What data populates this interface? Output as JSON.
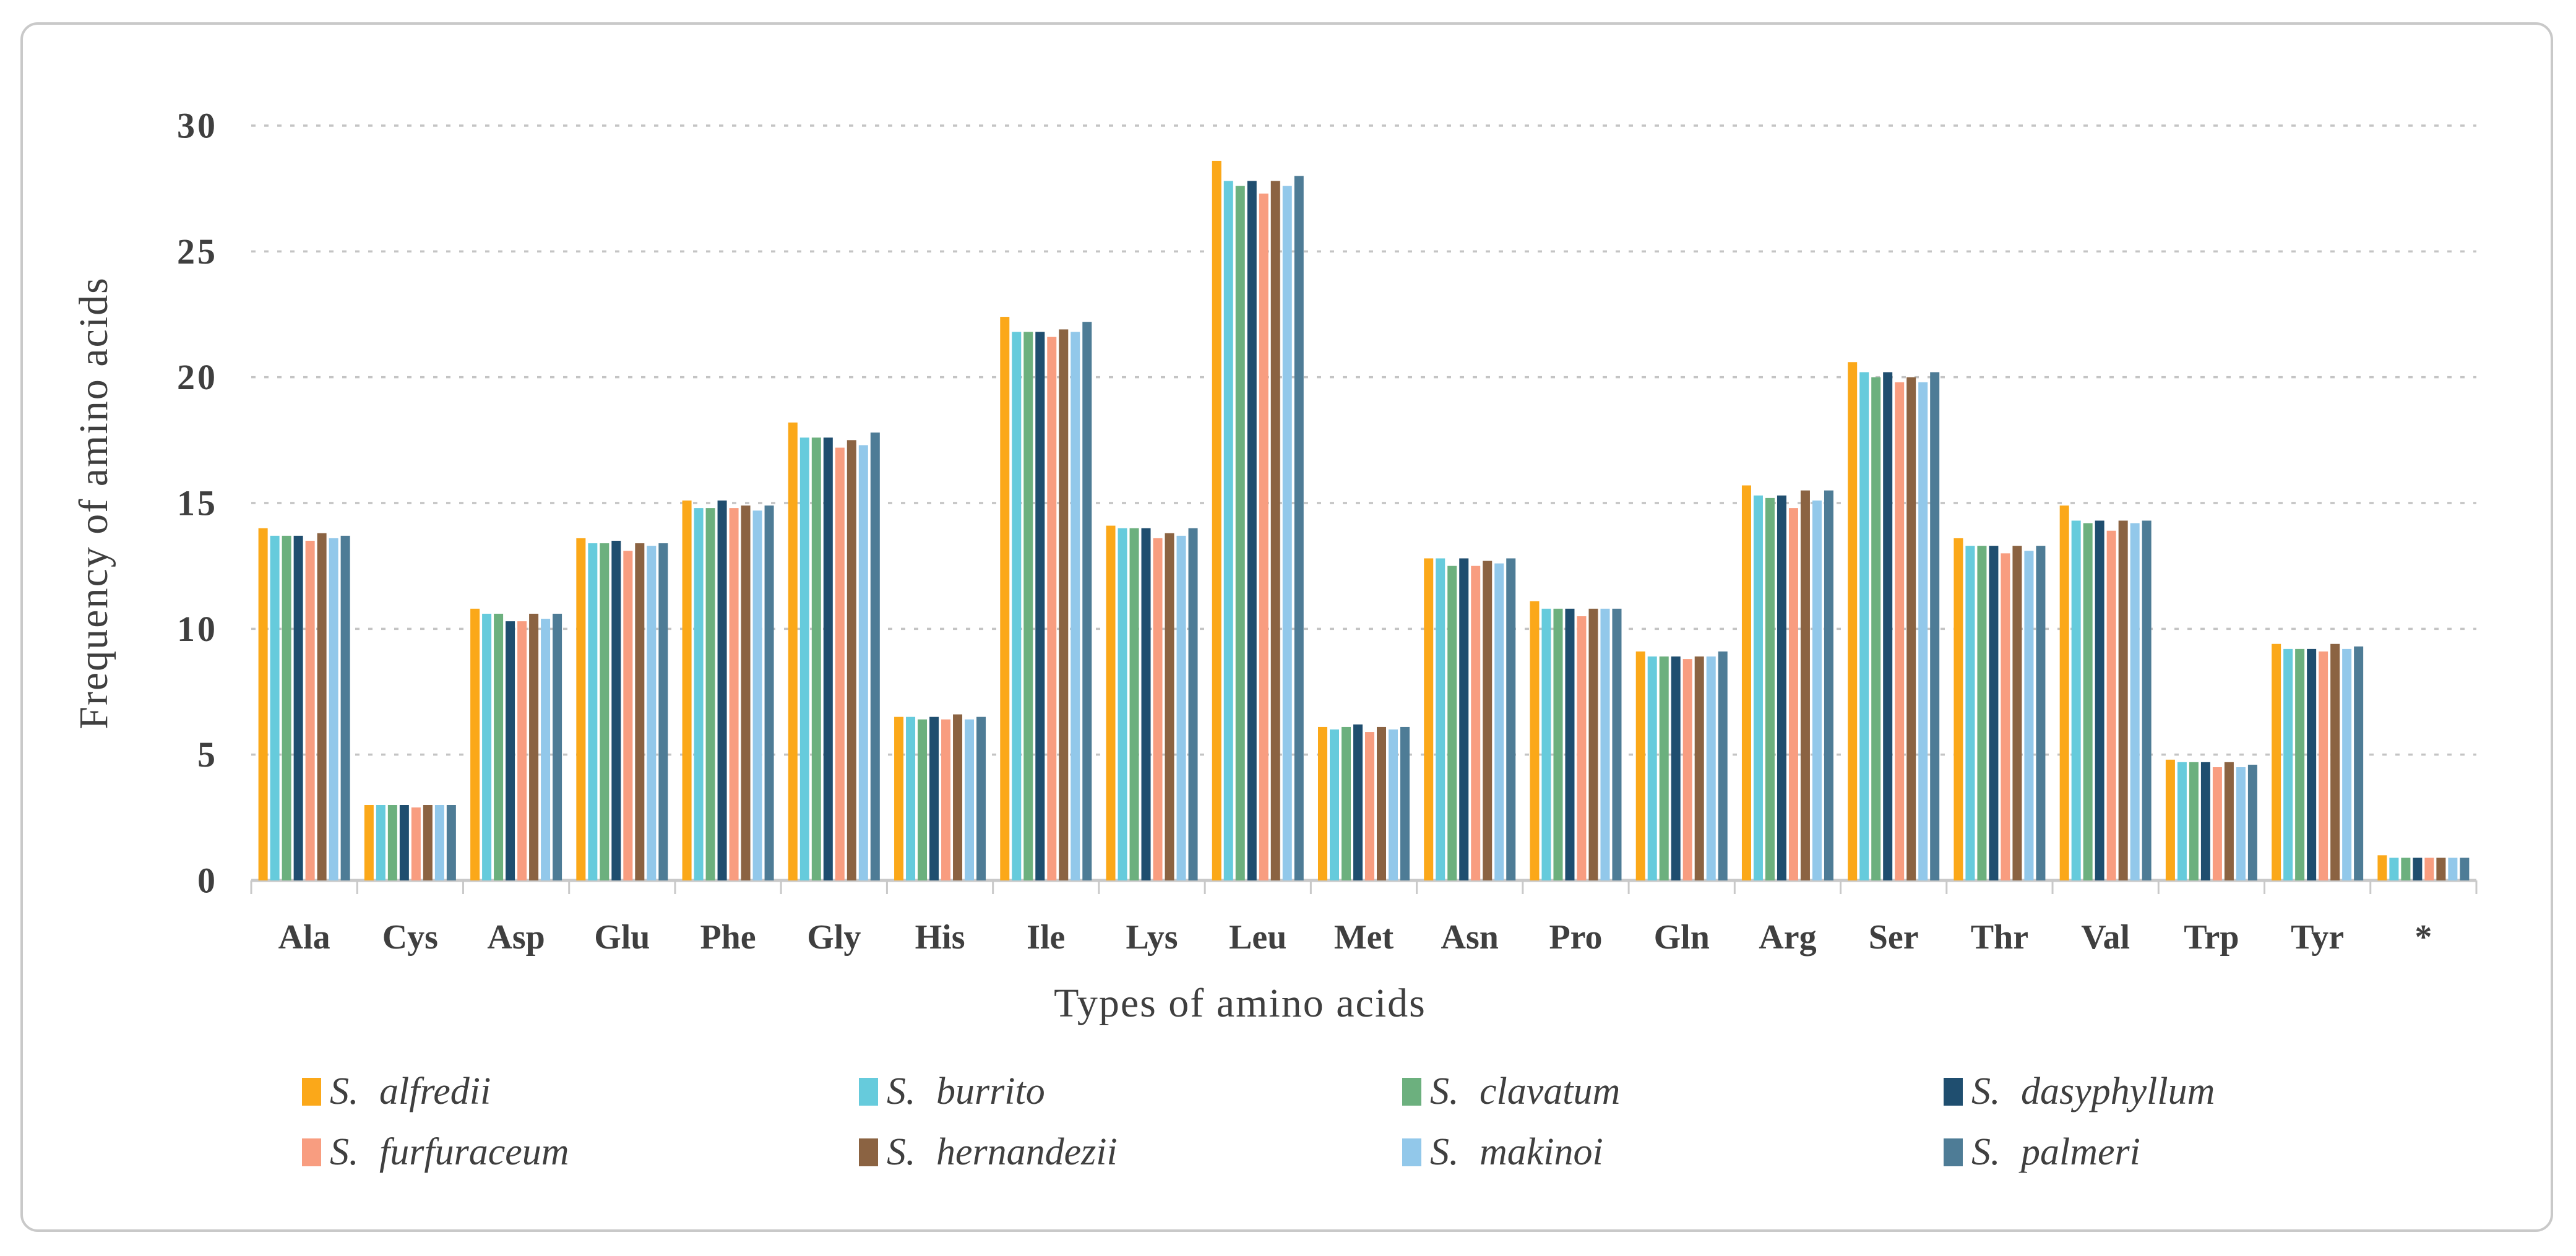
{
  "figure": {
    "background": "#ffffff",
    "border_color": "#c9c9c9"
  },
  "chart_data": {
    "type": "bar",
    "title": "",
    "xlabel": "Types of amino acids",
    "ylabel": "Frequency of amino acids",
    "ylim": [
      0,
      30
    ],
    "y_ticks": [
      0,
      5,
      10,
      15,
      20,
      25,
      30
    ],
    "grid": "horizontal dashed gridlines at each y tick, light gray",
    "legend_position": "bottom, two rows of four items",
    "axis_color": "#c9c9c9",
    "gridline_color": "#c4c4c4",
    "tick_label_color": "#3f3f3f",
    "categories": [
      "Ala",
      "Cys",
      "Asp",
      "Glu",
      "Phe",
      "Gly",
      "His",
      "Ile",
      "Lys",
      "Leu",
      "Met",
      "Asn",
      "Pro",
      "Gln",
      "Arg",
      "Ser",
      "Thr",
      "Val",
      "Trp",
      "Tyr",
      "*"
    ],
    "series": [
      {
        "name": "S. alfredii",
        "color": "#FBA819",
        "values": [
          14.0,
          3.0,
          10.8,
          13.6,
          15.1,
          18.2,
          6.5,
          22.4,
          14.1,
          28.6,
          6.1,
          12.8,
          11.1,
          9.1,
          15.7,
          20.6,
          13.6,
          14.9,
          4.8,
          9.4,
          1.0
        ]
      },
      {
        "name": "S. burrito",
        "color": "#66CBDC",
        "values": [
          13.7,
          3.0,
          10.6,
          13.4,
          14.8,
          17.6,
          6.5,
          21.8,
          14.0,
          27.8,
          6.0,
          12.8,
          10.8,
          8.9,
          15.3,
          20.2,
          13.3,
          14.3,
          4.7,
          9.2,
          0.9
        ]
      },
      {
        "name": "S. clavatum",
        "color": "#6CB07E",
        "values": [
          13.7,
          3.0,
          10.6,
          13.4,
          14.8,
          17.6,
          6.4,
          21.8,
          14.0,
          27.6,
          6.1,
          12.5,
          10.8,
          8.9,
          15.2,
          20.0,
          13.3,
          14.2,
          4.7,
          9.2,
          0.9
        ]
      },
      {
        "name": "S. dasyphyllum",
        "color": "#1F4E6F",
        "values": [
          13.7,
          3.0,
          10.3,
          13.5,
          15.1,
          17.6,
          6.5,
          21.8,
          14.0,
          27.8,
          6.2,
          12.8,
          10.8,
          8.9,
          15.3,
          20.2,
          13.3,
          14.3,
          4.7,
          9.2,
          0.9
        ]
      },
      {
        "name": "S. furfuraceum",
        "color": "#F89D80",
        "values": [
          13.5,
          2.9,
          10.3,
          13.1,
          14.8,
          17.2,
          6.4,
          21.6,
          13.6,
          27.3,
          5.9,
          12.5,
          10.5,
          8.8,
          14.8,
          19.8,
          13.0,
          13.9,
          4.5,
          9.1,
          0.9
        ]
      },
      {
        "name": "S. hernandezii",
        "color": "#8B6342",
        "values": [
          13.8,
          3.0,
          10.6,
          13.4,
          14.9,
          17.5,
          6.6,
          21.9,
          13.8,
          27.8,
          6.1,
          12.7,
          10.8,
          8.9,
          15.5,
          20.0,
          13.3,
          14.3,
          4.7,
          9.4,
          0.9
        ]
      },
      {
        "name": "S. makinoi",
        "color": "#92C8EA",
        "values": [
          13.6,
          3.0,
          10.4,
          13.3,
          14.7,
          17.3,
          6.4,
          21.8,
          13.7,
          27.6,
          6.0,
          12.6,
          10.8,
          8.9,
          15.1,
          19.8,
          13.1,
          14.2,
          4.5,
          9.2,
          0.9
        ]
      },
      {
        "name": "S. palmeri",
        "color": "#4E7C96",
        "values": [
          13.7,
          3.0,
          10.6,
          13.4,
          14.9,
          17.8,
          6.5,
          22.2,
          14.0,
          28.0,
          6.1,
          12.8,
          10.8,
          9.1,
          15.5,
          20.2,
          13.3,
          14.3,
          4.6,
          9.3,
          0.9
        ]
      }
    ]
  },
  "legend": {
    "items": [
      {
        "label": "S. alfredii"
      },
      {
        "label": "S. burrito"
      },
      {
        "label": "S. clavatum"
      },
      {
        "label": "S. dasyphyllum"
      },
      {
        "label": "S. furfuraceum"
      },
      {
        "label": "S. hernandezii"
      },
      {
        "label": "S. makinoi"
      },
      {
        "label": "S. palmeri"
      }
    ]
  }
}
